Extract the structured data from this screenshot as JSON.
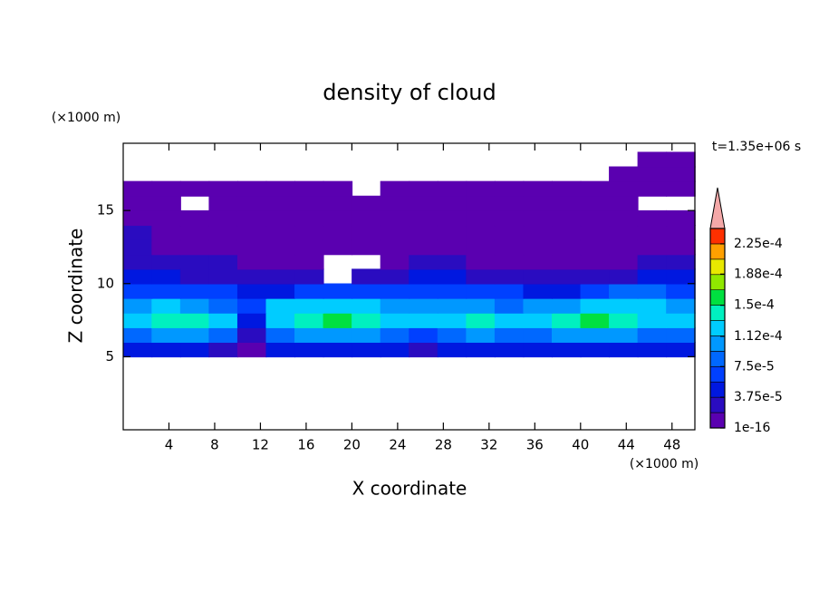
{
  "chart_data": {
    "type": "contour",
    "title": "density of cloud",
    "x_label": "X coordinate",
    "y_label": "Z coordinate",
    "x_unit": "(×1000 m)",
    "y_unit": "(×1000 m)",
    "annotation": "t=1.35e+06 s",
    "xlim": [
      0,
      50
    ],
    "ylim": [
      0,
      19.6
    ],
    "xticks": [
      4,
      8,
      12,
      16,
      20,
      24,
      28,
      32,
      36,
      40,
      44,
      48
    ],
    "yticks": [
      5,
      10,
      15
    ],
    "x": [
      0,
      2.5,
      5,
      7.5,
      10,
      12.5,
      15,
      17.5,
      20,
      22.5,
      25,
      27.5,
      30,
      32.5,
      35,
      37.5,
      40,
      42.5,
      45,
      47.5,
      50
    ],
    "y": [
      5,
      6,
      7,
      8,
      9,
      10,
      11,
      12,
      13,
      14,
      15,
      16,
      17,
      18,
      19
    ],
    "z": [
      [
        4.5e-05,
        4.5e-05,
        4.5e-05,
        3e-05,
        1e-05,
        4.5e-05,
        4.5e-05,
        4.5e-05,
        4.5e-05,
        4.5e-05,
        3e-05,
        4.5e-05,
        4.5e-05,
        4.5e-05,
        4.5e-05,
        4.5e-05,
        4.5e-05,
        4.5e-05,
        4.5e-05,
        4.5e-05
      ],
      [
        8.5e-05,
        0.0001,
        0.0001,
        8.5e-05,
        3e-05,
        8.5e-05,
        0.0001,
        0.0001,
        0.0001,
        8.5e-05,
        6.5e-05,
        8.5e-05,
        0.0001,
        8.5e-05,
        8.5e-05,
        0.0001,
        0.0001,
        0.0001,
        8.5e-05,
        8.5e-05
      ],
      [
        0.00012,
        0.00014,
        0.00014,
        0.00012,
        4.5e-05,
        0.00012,
        0.00014,
        0.00016,
        0.00014,
        0.00012,
        0.00012,
        0.00012,
        0.00014,
        0.00012,
        0.00012,
        0.00014,
        0.00016,
        0.00014,
        0.00012,
        0.00012
      ],
      [
        0.0001,
        0.00012,
        0.0001,
        8.5e-05,
        6.5e-05,
        0.00012,
        0.00012,
        0.00012,
        0.00012,
        0.0001,
        0.0001,
        0.0001,
        0.0001,
        8.5e-05,
        0.0001,
        0.0001,
        0.00012,
        0.00012,
        0.00012,
        0.0001
      ],
      [
        6.5e-05,
        6.5e-05,
        6.5e-05,
        6.5e-05,
        4.5e-05,
        4.5e-05,
        6.5e-05,
        6.5e-05,
        6.5e-05,
        6.5e-05,
        6.5e-05,
        6.5e-05,
        6.5e-05,
        6.5e-05,
        4.5e-05,
        4.5e-05,
        6.5e-05,
        8.5e-05,
        8.5e-05,
        6.5e-05
      ],
      [
        4.5e-05,
        4.5e-05,
        3e-05,
        3e-05,
        3e-05,
        3e-05,
        3e-05,
        null,
        3e-05,
        3e-05,
        4.5e-05,
        4.5e-05,
        3e-05,
        3e-05,
        3e-05,
        3e-05,
        3e-05,
        3e-05,
        4.5e-05,
        4.5e-05
      ],
      [
        3e-05,
        3e-05,
        3e-05,
        3e-05,
        1e-05,
        1e-05,
        1e-05,
        null,
        null,
        1e-05,
        3e-05,
        3e-05,
        1e-05,
        1e-05,
        1e-05,
        1e-05,
        1e-05,
        1e-05,
        3e-05,
        3e-05
      ],
      [
        3e-05,
        1e-05,
        1e-05,
        1e-05,
        1e-05,
        1e-05,
        1e-05,
        1e-05,
        1e-05,
        1e-05,
        1e-05,
        1e-05,
        1e-05,
        1e-05,
        1e-05,
        1e-05,
        1e-05,
        1e-05,
        1e-05,
        1e-05
      ],
      [
        3e-05,
        1e-05,
        1e-05,
        1e-05,
        1e-05,
        1e-05,
        1e-05,
        1e-05,
        1e-05,
        1e-05,
        1e-05,
        1e-05,
        1e-05,
        1e-05,
        1e-05,
        1e-05,
        1e-05,
        1e-05,
        1e-05,
        1e-05
      ],
      [
        1e-05,
        1e-05,
        1e-05,
        1e-05,
        1e-05,
        1e-05,
        1e-05,
        1e-05,
        1e-05,
        1e-05,
        1e-05,
        1e-05,
        1e-05,
        1e-05,
        1e-05,
        1e-05,
        1e-05,
        1e-05,
        1e-05,
        1e-05
      ],
      [
        1e-05,
        1e-05,
        null,
        1e-05,
        1e-05,
        1e-05,
        1e-05,
        1e-05,
        1e-05,
        1e-05,
        1e-05,
        1e-05,
        1e-05,
        1e-05,
        1e-05,
        1e-05,
        1e-05,
        1e-05,
        null,
        null
      ],
      [
        1e-05,
        1e-05,
        1e-05,
        1e-05,
        1e-05,
        1e-05,
        1e-05,
        1e-05,
        null,
        1e-05,
        1e-05,
        1e-05,
        1e-05,
        1e-05,
        1e-05,
        1e-05,
        1e-05,
        1e-05,
        1e-05,
        1e-05
      ],
      [
        null,
        null,
        null,
        null,
        null,
        null,
        null,
        null,
        null,
        null,
        null,
        null,
        null,
        null,
        null,
        null,
        null,
        1e-05,
        1e-05,
        1e-05
      ],
      [
        null,
        null,
        null,
        null,
        null,
        null,
        null,
        null,
        null,
        null,
        null,
        null,
        null,
        null,
        null,
        null,
        null,
        null,
        1e-05,
        1e-05
      ]
    ],
    "colorbar": {
      "levels": [
        1e-16,
        1.875e-05,
        3.75e-05,
        5.625e-05,
        7.5e-05,
        9.375e-05,
        0.0001125,
        0.00013125,
        0.00015,
        0.00016875,
        0.0001875,
        0.00020625,
        0.000225,
        0.00024375
      ],
      "colors": [
        "#5a00b0",
        "#2a0cc0",
        "#0018e0",
        "#0040ff",
        "#0068ff",
        "#0098ff",
        "#00ccff",
        "#00f0c0",
        "#00e040",
        "#90e800",
        "#e8e800",
        "#ffa000",
        "#ff3000"
      ],
      "extend_color": "#f4a8a8",
      "ticks": [
        1e-16,
        {
          "value": 3.75e-05,
          "label": "3.75e-5"
        },
        {
          "value": 7.5e-05,
          "label": "7.5e-5"
        },
        {
          "value": 0.000112,
          "label": "1.12e-4"
        },
        {
          "value": 0.00015,
          "label": "1.5e-4"
        },
        {
          "value": 0.000188,
          "label": "1.88e-4"
        },
        {
          "value": 0.000225,
          "label": "2.25e-4"
        }
      ]
    }
  }
}
